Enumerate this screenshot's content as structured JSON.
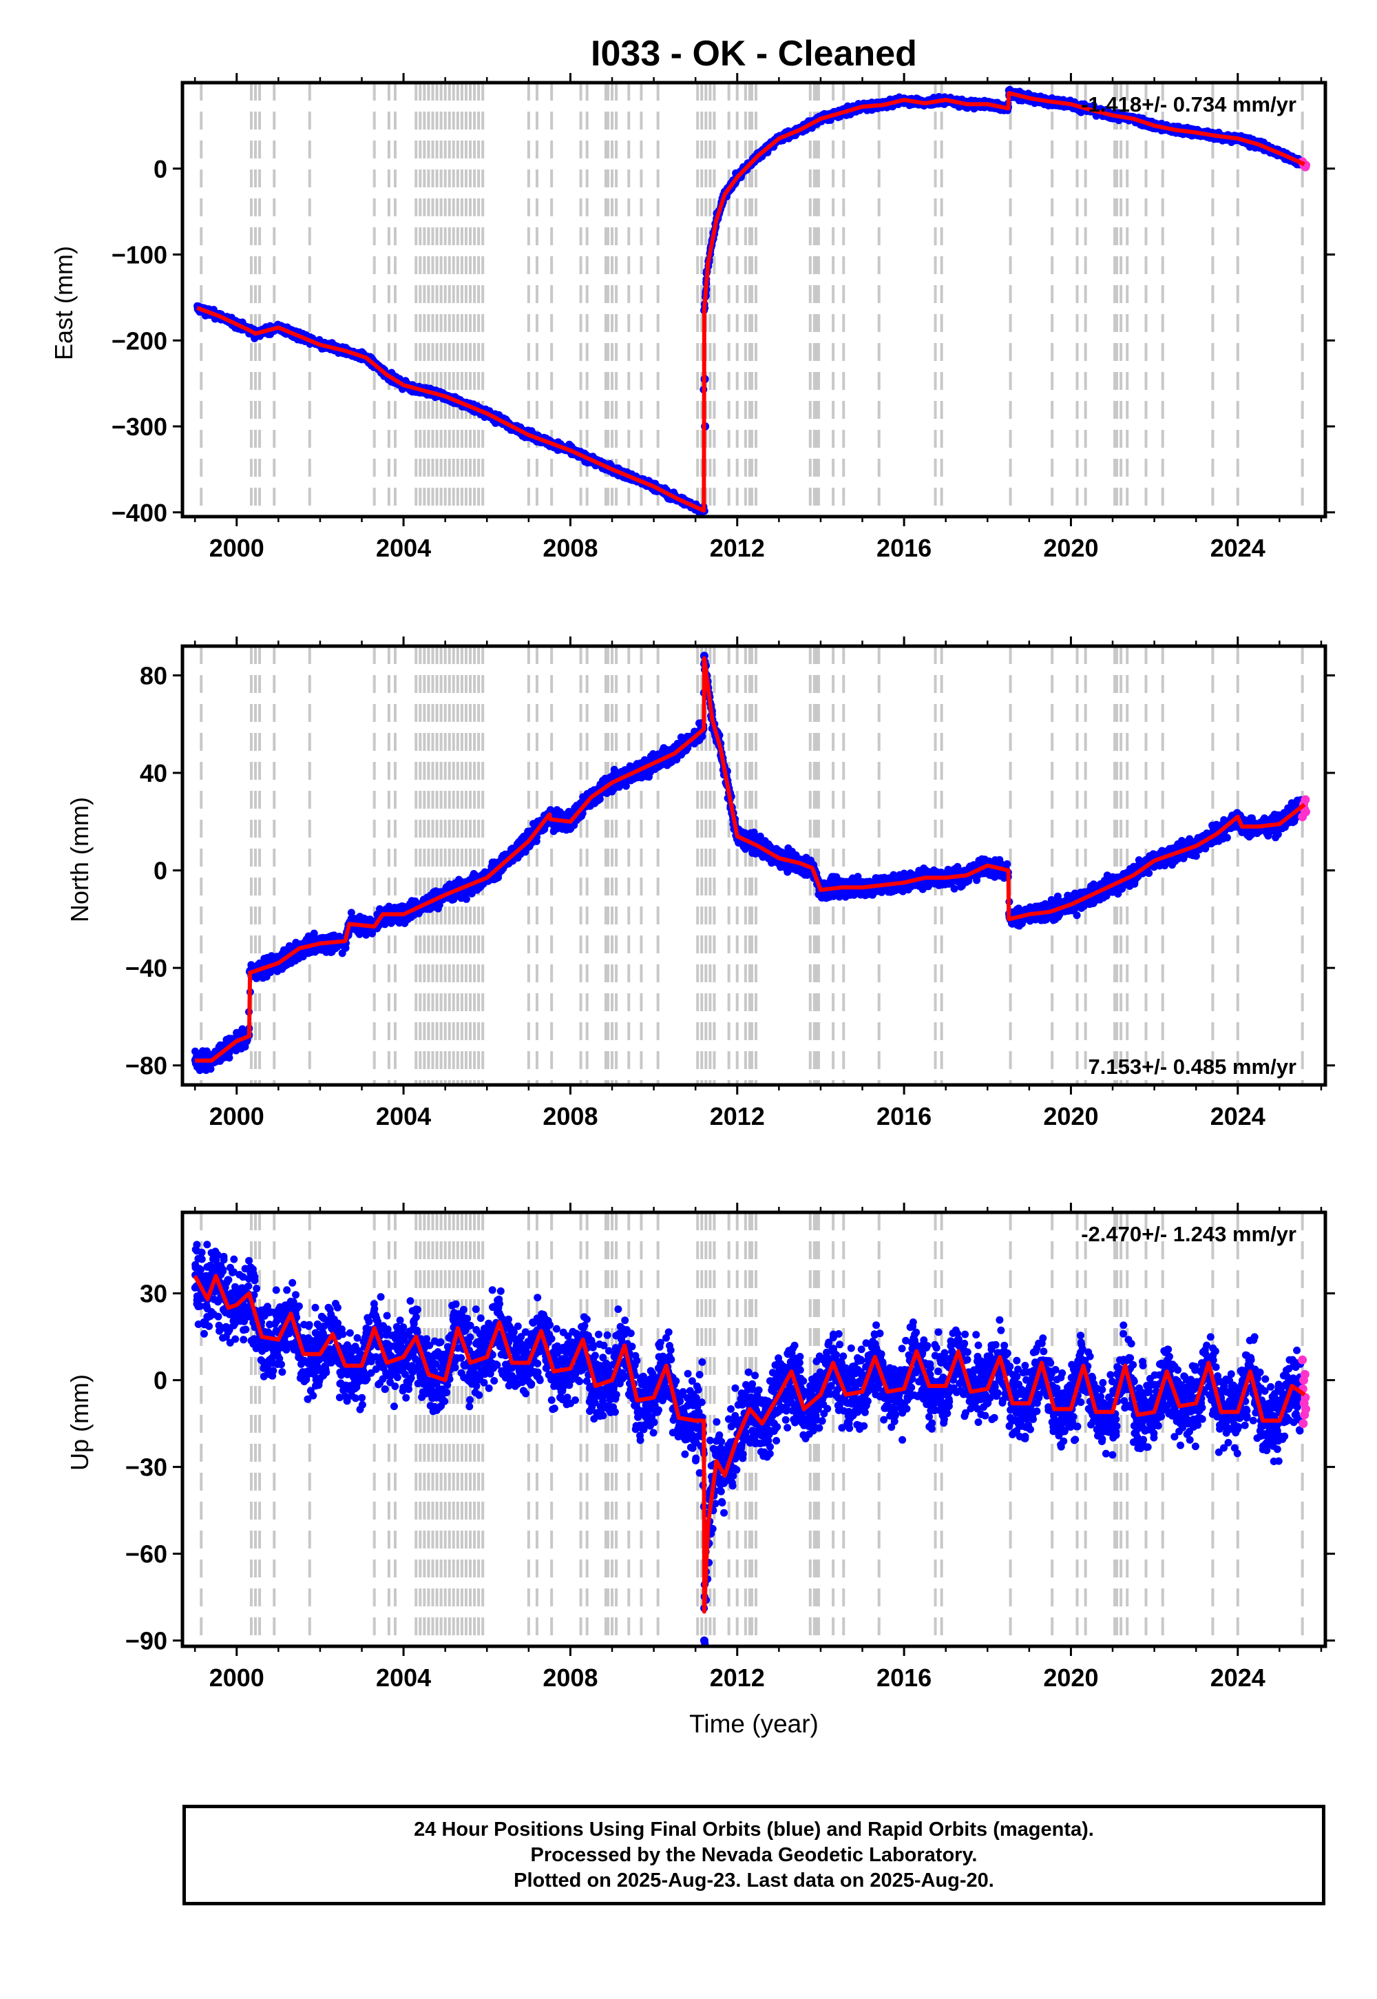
{
  "title": "I033  - OK - Cleaned",
  "xlabel": "Time (year)",
  "footer": {
    "line1": "24 Hour Positions Using Final Orbits (blue) and Rapid Orbits (magenta).",
    "line2": "Processed by the Nevada Geodetic Laboratory.",
    "line3": "Plotted on 2025-Aug-23. Last data on 2025-Aug-20."
  },
  "colors": {
    "final_orbits": "#0000ff",
    "rapid_orbits": "#ff33cc",
    "model": "#ff0000",
    "event_lines": "#c8c8c8"
  },
  "chart_data": [
    {
      "type": "scatter",
      "name": "east",
      "ylabel": "East (mm)",
      "rate": "-1.418+/- 0.734 mm/yr",
      "rate_position": "top-right",
      "xlim": [
        1998.7,
        2026.1
      ],
      "ylim": [
        -405,
        100
      ],
      "x_ticks": [
        2000,
        2004,
        2008,
        2012,
        2016,
        2020,
        2024
      ],
      "y_ticks": [
        0,
        -100,
        -200,
        -300,
        -400
      ],
      "y_tick_labels": [
        "0",
        "−100",
        "−200",
        "−300",
        "−400"
      ],
      "scatter_jitter_mm": 3,
      "model_x": [
        1999.05,
        1999.6,
        2000.3,
        2000.45,
        2001.0,
        2001.5,
        2002.0,
        2002.6,
        2003.1,
        2003.6,
        2004.0,
        2005.0,
        2006.0,
        2007.0,
        2008.0,
        2009.0,
        2010.0,
        2010.6,
        2011.2,
        2011.21,
        2011.3,
        2011.5,
        2011.7,
        2012.0,
        2012.5,
        2013.0,
        2013.5,
        2014.0,
        2014.5,
        2015.0,
        2015.5,
        2016.0,
        2016.5,
        2017.0,
        2017.5,
        2018.0,
        2018.5,
        2018.51,
        2019.0,
        2019.5,
        2020.0,
        2020.5,
        2021.0,
        2021.5,
        2022.0,
        2022.5,
        2023.0,
        2023.5,
        2024.0,
        2024.5,
        2025.0,
        2025.6
      ],
      "model_y": [
        -162,
        -172,
        -188,
        -192,
        -185,
        -195,
        -205,
        -212,
        -220,
        -240,
        -252,
        -265,
        -285,
        -310,
        -328,
        -350,
        -370,
        -385,
        -398,
        -165,
        -110,
        -60,
        -30,
        -10,
        15,
        35,
        45,
        58,
        65,
        72,
        74,
        80,
        76,
        80,
        75,
        75,
        70,
        88,
        82,
        78,
        75,
        68,
        62,
        58,
        50,
        45,
        42,
        38,
        35,
        28,
        18,
        5
      ],
      "rapid_x": [
        2025.55,
        2025.58,
        2025.6,
        2025.62,
        2025.63
      ],
      "rapid_y": [
        8,
        5,
        3,
        2,
        4
      ],
      "outliers_x": [
        2011.22,
        2011.23
      ],
      "outliers_y": [
        -245,
        -300
      ]
    },
    {
      "type": "scatter",
      "name": "north",
      "ylabel": "North (mm)",
      "rate": "7.153+/- 0.485 mm/yr",
      "rate_position": "bottom-right",
      "xlim": [
        1998.7,
        2026.1
      ],
      "ylim": [
        -88,
        92
      ],
      "x_ticks": [
        2000,
        2004,
        2008,
        2012,
        2016,
        2020,
        2024
      ],
      "y_ticks": [
        80,
        40,
        0,
        -40,
        -80
      ],
      "y_tick_labels": [
        "80",
        "40",
        "0",
        "−40",
        "−80"
      ],
      "scatter_jitter_mm": 2.5,
      "model_x": [
        1999.0,
        1999.4,
        2000.0,
        2000.3,
        2000.32,
        2001.0,
        2001.5,
        2002.0,
        2002.6,
        2002.7,
        2003.3,
        2003.5,
        2004.0,
        2005.0,
        2006.0,
        2007.0,
        2007.5,
        2007.52,
        2008.0,
        2008.5,
        2009.0,
        2010.0,
        2010.5,
        2011.0,
        2011.2,
        2011.21,
        2011.4,
        2011.6,
        2011.8,
        2012.0,
        2012.5,
        2013.0,
        2013.5,
        2013.8,
        2014.0,
        2014.5,
        2015.0,
        2015.5,
        2016.0,
        2016.5,
        2017.0,
        2017.5,
        2018.0,
        2018.5,
        2018.51,
        2019.0,
        2019.5,
        2020.0,
        2020.5,
        2021.0,
        2021.5,
        2022.0,
        2022.5,
        2023.0,
        2023.5,
        2024.0,
        2024.1,
        2024.5,
        2025.0,
        2025.6
      ],
      "model_y": [
        -78,
        -78,
        -70,
        -68,
        -42,
        -38,
        -32,
        -30,
        -29,
        -22,
        -23,
        -18,
        -18,
        -10,
        -3,
        12,
        23,
        21,
        20,
        30,
        36,
        44,
        48,
        55,
        58,
        87,
        62,
        50,
        32,
        14,
        10,
        5,
        3,
        1,
        -8,
        -7,
        -7,
        -6,
        -5,
        -3,
        -3,
        -2,
        2,
        0,
        -20,
        -18,
        -17,
        -14,
        -10,
        -6,
        -2,
        4,
        7,
        10,
        15,
        22,
        18,
        18,
        19,
        27
      ],
      "rapid_x": [
        2025.55,
        2025.58,
        2025.6,
        2025.62,
        2025.63
      ],
      "rapid_y": [
        22,
        27,
        25,
        29,
        24
      ],
      "outliers_x": [
        2011.21
      ],
      "outliers_y": [
        88
      ]
    },
    {
      "type": "scatter",
      "name": "up",
      "ylabel": "Up (mm)",
      "rate": "-2.470+/- 1.243 mm/yr",
      "rate_position": "top-right",
      "xlim": [
        1998.7,
        2026.1
      ],
      "ylim": [
        -92,
        58
      ],
      "x_ticks": [
        2000,
        2004,
        2008,
        2012,
        2016,
        2020,
        2024
      ],
      "y_ticks": [
        30,
        0,
        -30,
        -60,
        -90
      ],
      "y_tick_labels": [
        "30",
        "0",
        "−30",
        "−60",
        "−90"
      ],
      "scatter_jitter_mm": 9,
      "model_x": [
        1999.0,
        1999.3,
        1999.5,
        1999.8,
        2000.0,
        2000.3,
        2000.6,
        2001.0,
        2001.3,
        2001.6,
        2002.0,
        2002.3,
        2002.6,
        2003.0,
        2003.3,
        2003.6,
        2004.0,
        2004.3,
        2004.6,
        2005.0,
        2005.3,
        2005.6,
        2006.0,
        2006.3,
        2006.6,
        2007.0,
        2007.3,
        2007.6,
        2008.0,
        2008.3,
        2008.6,
        2009.0,
        2009.3,
        2009.6,
        2010.0,
        2010.3,
        2010.6,
        2011.0,
        2011.2,
        2011.21,
        2011.3,
        2011.5,
        2011.7,
        2012.0,
        2012.3,
        2012.6,
        2013.0,
        2013.3,
        2013.6,
        2014.0,
        2014.3,
        2014.6,
        2015.0,
        2015.3,
        2015.6,
        2016.0,
        2016.3,
        2016.6,
        2017.0,
        2017.3,
        2017.6,
        2018.0,
        2018.3,
        2018.6,
        2019.0,
        2019.3,
        2019.6,
        2020.0,
        2020.3,
        2020.6,
        2021.0,
        2021.3,
        2021.6,
        2022.0,
        2022.3,
        2022.6,
        2023.0,
        2023.3,
        2023.6,
        2024.0,
        2024.3,
        2024.6,
        2025.0,
        2025.3,
        2025.6
      ],
      "model_y": [
        36,
        28,
        36,
        25,
        26,
        30,
        15,
        14,
        23,
        9,
        9,
        16,
        5,
        5,
        18,
        6,
        8,
        15,
        2,
        0,
        18,
        6,
        8,
        20,
        6,
        6,
        17,
        3,
        4,
        14,
        -2,
        0,
        12,
        -7,
        -6,
        5,
        -13,
        -14,
        -14,
        -80,
        -50,
        -28,
        -33,
        -20,
        -10,
        -15,
        -5,
        3,
        -10,
        -5,
        6,
        -5,
        -4,
        8,
        -4,
        -3,
        10,
        -2,
        -2,
        10,
        -4,
        -3,
        8,
        -8,
        -8,
        6,
        -10,
        -10,
        5,
        -11,
        -11,
        5,
        -12,
        -11,
        3,
        -9,
        -8,
        6,
        -11,
        -11,
        3,
        -14,
        -14,
        -2,
        -5
      ],
      "rapid_x": [
        2025.55,
        2025.56,
        2025.57,
        2025.58,
        2025.59,
        2025.6,
        2025.61,
        2025.62,
        2025.63
      ],
      "rapid_y": [
        7,
        -3,
        -15,
        0,
        -8,
        -12,
        2,
        -6,
        -10
      ],
      "outliers_x": [
        2011.21
      ],
      "outliers_y": [
        -90
      ]
    }
  ],
  "events": {
    "single": [
      1999.15,
      2000.9,
      2001.75,
      2003.3,
      2003.65,
      2003.8,
      2007.0,
      2007.2,
      2007.55,
      2008.25,
      2008.4,
      2008.85,
      2009.4,
      2009.7,
      2010.1,
      2011.8,
      2012.0,
      2012.2,
      2012.3,
      2013.9,
      2014.3,
      2014.55,
      2015.4,
      2016.75,
      2016.9,
      2018.55,
      2019.55,
      2020.15,
      2020.35,
      2021.05,
      2021.1,
      2021.2,
      2021.35,
      2021.8,
      2022.2,
      2023.4,
      2024.0,
      2025.55
    ],
    "dense": [
      [
        2000.35,
        2000.6
      ],
      [
        2004.3,
        2005.9
      ],
      [
        2008.9,
        2009.1
      ],
      [
        2011.05,
        2011.5
      ],
      [
        2012.35,
        2012.5
      ],
      [
        2013.75,
        2014.0
      ]
    ]
  }
}
